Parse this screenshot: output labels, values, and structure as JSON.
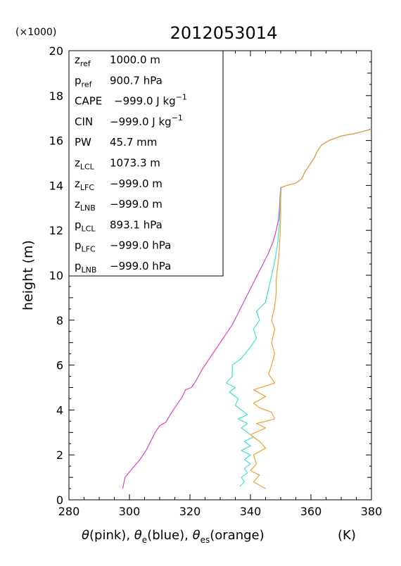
{
  "chart_data": {
    "type": "line",
    "title": "2012053014",
    "scale_note": "(×1000)",
    "xlabel": "θ(pink), θe(blue), θes(orange)   (K)",
    "xlabel_parts": {
      "theta": "θ",
      "pink": "(pink), ",
      "theta_e": "θ",
      "e_sub": "e",
      "blue": "(blue), ",
      "theta_es": "θ",
      "es_sub": "es",
      "orange": "(orange)",
      "unit": "(K)"
    },
    "ylabel": "height (m)",
    "xlim": [
      280,
      380
    ],
    "ylim": [
      0,
      20
    ],
    "x_ticks": [
      280,
      300,
      320,
      340,
      360,
      380
    ],
    "y_ticks": [
      0,
      2,
      4,
      6,
      8,
      10,
      12,
      14,
      16,
      18,
      20
    ],
    "grid": false,
    "info_box": [
      {
        "sym": "z",
        "sub": "ref",
        "sup": "",
        "value": "1000.0 m",
        "unit_sup": ""
      },
      {
        "sym": "p",
        "sub": "ref",
        "sup": "",
        "value": "900.7 hPa",
        "unit_sup": ""
      },
      {
        "sym": "CAPE",
        "sub": "",
        "sup": "",
        "value": "−999.0 J kg",
        "unit_sup": "−1"
      },
      {
        "sym": "CIN",
        "sub": "",
        "sup": "",
        "value": "−999.0 J kg",
        "unit_sup": "−1"
      },
      {
        "sym": "PW",
        "sub": "",
        "sup": "",
        "value": "45.7 mm",
        "unit_sup": ""
      },
      {
        "sym": "z",
        "sub": "LCL",
        "sup": "",
        "value": "1073.3 m",
        "unit_sup": ""
      },
      {
        "sym": "z",
        "sub": "LFC",
        "sup": "",
        "value": "−999.0 m",
        "unit_sup": ""
      },
      {
        "sym": "z",
        "sub": "LNB",
        "sup": "",
        "value": "−999.0 m",
        "unit_sup": ""
      },
      {
        "sym": "p",
        "sub": "LCL",
        "sup": "",
        "value": "893.1 hPa",
        "unit_sup": ""
      },
      {
        "sym": "p",
        "sub": "LFC",
        "sup": "",
        "value": "−999.0 hPa",
        "unit_sup": ""
      },
      {
        "sym": "p",
        "sub": "LNB",
        "sup": "",
        "value": "−999.0 hPa",
        "unit_sup": ""
      }
    ],
    "series": [
      {
        "color": "#e040c0",
        "points": [
          [
            297.8,
            0.5
          ],
          [
            298.5,
            1.0
          ],
          [
            301,
            1.4
          ],
          [
            303.5,
            1.8
          ],
          [
            305.5,
            2.2
          ],
          [
            307,
            2.6
          ],
          [
            308.5,
            3.0
          ],
          [
            310,
            3.3
          ],
          [
            312,
            3.45
          ],
          [
            314,
            3.9
          ],
          [
            316,
            4.3
          ],
          [
            317.5,
            4.6
          ],
          [
            318.5,
            4.9
          ],
          [
            320.5,
            5.0
          ],
          [
            322,
            5.3
          ],
          [
            324,
            5.8
          ],
          [
            326,
            6.2
          ],
          [
            328,
            6.6
          ],
          [
            330,
            7.0
          ],
          [
            332,
            7.4
          ],
          [
            334,
            7.8
          ],
          [
            335.5,
            8.2
          ],
          [
            337,
            8.6
          ],
          [
            338.5,
            9.0
          ],
          [
            340,
            9.4
          ],
          [
            341.5,
            9.8
          ],
          [
            343,
            10.2
          ],
          [
            344.5,
            10.6
          ],
          [
            346,
            11.0
          ],
          [
            347.5,
            11.5
          ],
          [
            348.5,
            12.0
          ],
          [
            349.3,
            12.5
          ],
          [
            349.6,
            13.0
          ],
          [
            349.8,
            13.5
          ],
          [
            350,
            13.9
          ],
          [
            352,
            14.0
          ],
          [
            355,
            14.1
          ],
          [
            357,
            14.3
          ],
          [
            358,
            14.6
          ],
          [
            359.5,
            14.9
          ],
          [
            361,
            15.2
          ],
          [
            362,
            15.5
          ],
          [
            363.5,
            15.8
          ],
          [
            366,
            16.0
          ],
          [
            370,
            16.2
          ],
          [
            374,
            16.3
          ],
          [
            377,
            16.4
          ],
          [
            380,
            16.5
          ]
        ]
      },
      {
        "color": "#40e0d0",
        "points": [
          [
            336.5,
            0.6
          ],
          [
            338,
            0.8
          ],
          [
            337,
            1.0
          ],
          [
            339,
            1.2
          ],
          [
            338,
            1.4
          ],
          [
            340,
            1.6
          ],
          [
            338,
            1.8
          ],
          [
            340,
            2.0
          ],
          [
            337,
            2.2
          ],
          [
            340,
            2.4
          ],
          [
            338,
            2.6
          ],
          [
            341,
            2.8
          ],
          [
            339,
            3.0
          ],
          [
            337,
            3.2
          ],
          [
            339,
            3.4
          ],
          [
            336,
            3.6
          ],
          [
            339,
            3.8
          ],
          [
            337,
            4.0
          ],
          [
            335,
            4.2
          ],
          [
            336,
            4.5
          ],
          [
            333,
            4.8
          ],
          [
            335,
            5.0
          ],
          [
            332,
            5.2
          ],
          [
            334,
            5.5
          ],
          [
            334,
            6.0
          ],
          [
            337,
            6.3
          ],
          [
            340,
            6.8
          ],
          [
            342,
            7.2
          ],
          [
            341,
            7.6
          ],
          [
            343,
            8.0
          ],
          [
            342,
            8.4
          ],
          [
            345,
            8.8
          ],
          [
            346,
            9.4
          ],
          [
            347,
            10.0
          ],
          [
            348,
            10.6
          ],
          [
            349,
            11.4
          ],
          [
            349.5,
            12.2
          ],
          [
            349.8,
            13.0
          ],
          [
            350,
            13.9
          ],
          [
            352,
            14.0
          ],
          [
            355,
            14.1
          ],
          [
            357,
            14.3
          ],
          [
            358,
            14.6
          ],
          [
            359.5,
            14.9
          ],
          [
            361,
            15.2
          ],
          [
            362,
            15.5
          ],
          [
            363.5,
            15.8
          ],
          [
            366,
            16.0
          ],
          [
            370,
            16.2
          ],
          [
            374,
            16.3
          ],
          [
            377,
            16.4
          ],
          [
            380,
            16.5
          ]
        ]
      },
      {
        "color": "#f0a030",
        "points": [
          [
            345,
            0.5
          ],
          [
            341,
            0.8
          ],
          [
            343,
            1.1
          ],
          [
            340,
            1.3
          ],
          [
            342,
            1.6
          ],
          [
            341,
            2.0
          ],
          [
            345,
            2.3
          ],
          [
            343,
            2.6
          ],
          [
            340,
            2.9
          ],
          [
            345,
            3.2
          ],
          [
            342,
            3.4
          ],
          [
            348,
            3.6
          ],
          [
            347,
            3.9
          ],
          [
            343,
            4.1
          ],
          [
            341,
            4.3
          ],
          [
            345,
            4.6
          ],
          [
            341,
            4.9
          ],
          [
            348,
            5.2
          ],
          [
            346,
            5.6
          ],
          [
            347,
            6.0
          ],
          [
            348,
            6.5
          ],
          [
            347,
            7.0
          ],
          [
            348,
            7.6
          ],
          [
            347,
            8.0
          ],
          [
            348,
            8.6
          ],
          [
            348.5,
            9.2
          ],
          [
            348.5,
            9.8
          ],
          [
            349,
            10.4
          ],
          [
            349.5,
            11.0
          ],
          [
            349.8,
            11.8
          ],
          [
            350,
            12.6
          ],
          [
            350,
            13.4
          ],
          [
            350.2,
            13.9
          ],
          [
            352,
            14.0
          ],
          [
            355,
            14.1
          ],
          [
            357,
            14.3
          ],
          [
            358,
            14.6
          ],
          [
            359.5,
            14.9
          ],
          [
            361,
            15.2
          ],
          [
            362,
            15.5
          ],
          [
            363.5,
            15.8
          ],
          [
            366,
            16.0
          ],
          [
            370,
            16.2
          ],
          [
            374,
            16.3
          ],
          [
            377,
            16.4
          ],
          [
            380,
            16.5
          ]
        ]
      }
    ]
  }
}
